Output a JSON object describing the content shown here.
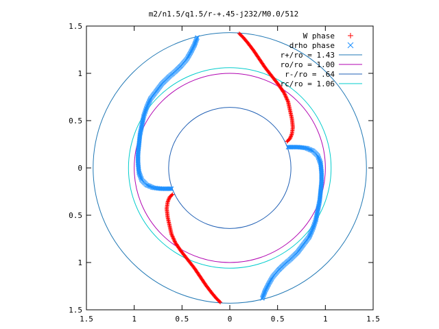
{
  "chart_data": {
    "type": "scatter",
    "title": "m2/n1.5/q1.5/r-+.45-j232/M0.0/512",
    "xlabel": "",
    "ylabel": "",
    "xlim": [
      -1.5,
      1.5
    ],
    "ylim": [
      -1.5,
      1.5
    ],
    "x_tick_values": [
      -1.5,
      -1,
      -0.5,
      0,
      0.5,
      1,
      1.5
    ],
    "x_tick_labels": [
      "1.5",
      "1",
      "0.5",
      "0",
      "0.5",
      "1",
      "1.5"
    ],
    "y_tick_values": [
      1.5,
      1,
      0.5,
      0,
      -0.5,
      -1,
      -1.5
    ],
    "y_tick_labels": [
      "1.5",
      "1",
      "0.5",
      "0",
      "0.5",
      "1",
      "1.5"
    ],
    "grid": false,
    "legend_position": "top-right",
    "series": [
      {
        "name": "W phase",
        "marker": "plus",
        "color": "#ff0000",
        "arms": [
          [
            [
              0.1,
              1.42
            ],
            [
              0.14,
              1.38
            ],
            [
              0.19,
              1.32
            ],
            [
              0.25,
              1.24
            ],
            [
              0.31,
              1.15
            ],
            [
              0.37,
              1.06
            ],
            [
              0.44,
              0.97
            ],
            [
              0.51,
              0.88
            ],
            [
              0.57,
              0.79
            ],
            [
              0.61,
              0.7
            ],
            [
              0.63,
              0.61
            ],
            [
              0.65,
              0.52
            ],
            [
              0.66,
              0.43
            ],
            [
              0.65,
              0.36
            ],
            [
              0.63,
              0.31
            ],
            [
              0.6,
              0.28
            ]
          ],
          [
            [
              -0.1,
              -1.42
            ],
            [
              -0.14,
              -1.38
            ],
            [
              -0.19,
              -1.32
            ],
            [
              -0.25,
              -1.24
            ],
            [
              -0.31,
              -1.15
            ],
            [
              -0.37,
              -1.06
            ],
            [
              -0.44,
              -0.97
            ],
            [
              -0.51,
              -0.88
            ],
            [
              -0.57,
              -0.79
            ],
            [
              -0.61,
              -0.7
            ],
            [
              -0.63,
              -0.61
            ],
            [
              -0.65,
              -0.52
            ],
            [
              -0.66,
              -0.43
            ],
            [
              -0.65,
              -0.36
            ],
            [
              -0.63,
              -0.31
            ],
            [
              -0.6,
              -0.28
            ]
          ]
        ]
      },
      {
        "name": "drho phase",
        "marker": "cross",
        "color": "#1e90ff",
        "arms": [
          [
            [
              -0.34,
              1.38
            ],
            [
              -0.37,
              1.3
            ],
            [
              -0.41,
              1.22
            ],
            [
              -0.45,
              1.15
            ],
            [
              -0.51,
              1.08
            ],
            [
              -0.57,
              1.02
            ],
            [
              -0.64,
              0.96
            ],
            [
              -0.71,
              0.89
            ],
            [
              -0.77,
              0.81
            ],
            [
              -0.83,
              0.73
            ],
            [
              -0.87,
              0.64
            ],
            [
              -0.9,
              0.55
            ],
            [
              -0.92,
              0.45
            ],
            [
              -0.94,
              0.35
            ],
            [
              -0.95,
              0.25
            ],
            [
              -0.96,
              0.15
            ],
            [
              -0.96,
              0.05
            ],
            [
              -0.95,
              -0.05
            ],
            [
              -0.92,
              -0.13
            ],
            [
              -0.87,
              -0.18
            ],
            [
              -0.8,
              -0.21
            ],
            [
              -0.72,
              -0.22
            ],
            [
              -0.64,
              -0.22
            ],
            [
              -0.61,
              -0.22
            ]
          ],
          [
            [
              0.34,
              -1.38
            ],
            [
              0.37,
              -1.3
            ],
            [
              0.41,
              -1.22
            ],
            [
              0.45,
              -1.15
            ],
            [
              0.51,
              -1.08
            ],
            [
              0.57,
              -1.02
            ],
            [
              0.64,
              -0.96
            ],
            [
              0.71,
              -0.89
            ],
            [
              0.77,
              -0.81
            ],
            [
              0.83,
              -0.73
            ],
            [
              0.87,
              -0.64
            ],
            [
              0.9,
              -0.55
            ],
            [
              0.92,
              -0.45
            ],
            [
              0.94,
              -0.35
            ],
            [
              0.95,
              -0.25
            ],
            [
              0.96,
              -0.15
            ],
            [
              0.96,
              -0.05
            ],
            [
              0.95,
              0.05
            ],
            [
              0.92,
              0.13
            ],
            [
              0.87,
              0.18
            ],
            [
              0.8,
              0.21
            ],
            [
              0.72,
              0.22
            ],
            [
              0.64,
              0.22
            ],
            [
              0.61,
              0.22
            ]
          ]
        ]
      }
    ],
    "circles": [
      {
        "name": "r+/ro = 1.43",
        "radius": 1.43,
        "color": "#1f77b4"
      },
      {
        "name": "ro/ro = 1.00",
        "radius": 1.0,
        "color": "#b000b0"
      },
      {
        "name": "r-/ro = .64",
        "radius": 0.64,
        "color": "#1f5fb4"
      },
      {
        "name": "rc/ro = 1.06",
        "radius": 1.06,
        "color": "#00cccc"
      }
    ]
  }
}
